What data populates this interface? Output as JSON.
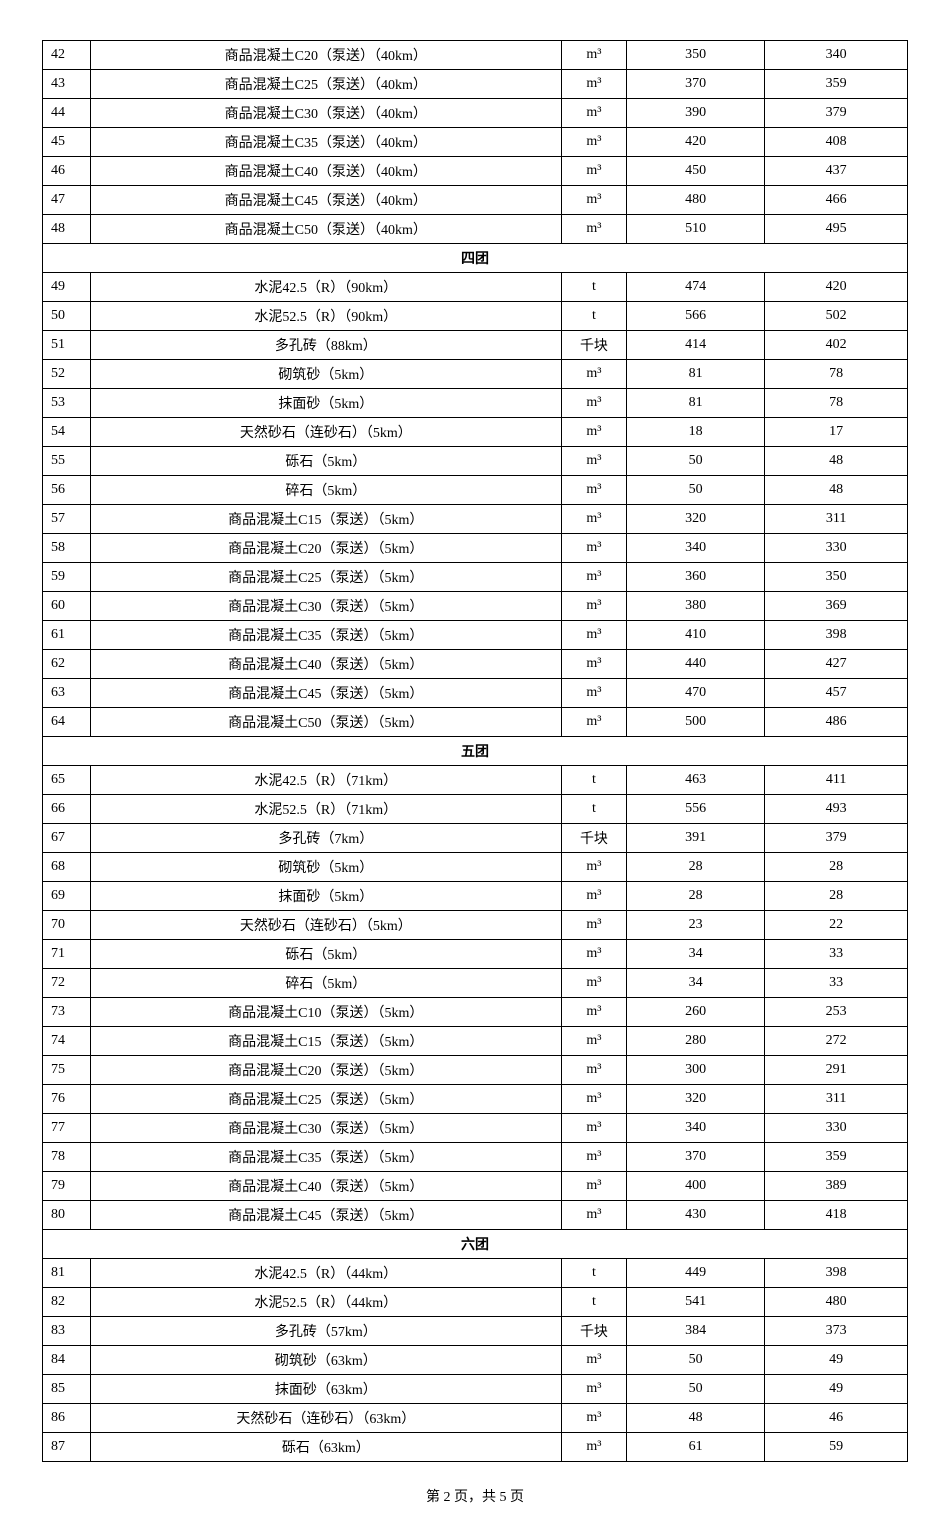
{
  "footer": "第 2 页，共 5 页",
  "sections": [
    {
      "rows": [
        {
          "n": "42",
          "name": "商品混凝土C20（泵送）（40km）",
          "unit": "m³",
          "p1": "350",
          "p2": "340"
        },
        {
          "n": "43",
          "name": "商品混凝土C25（泵送）（40km）",
          "unit": "m³",
          "p1": "370",
          "p2": "359"
        },
        {
          "n": "44",
          "name": "商品混凝土C30（泵送）（40km）",
          "unit": "m³",
          "p1": "390",
          "p2": "379"
        },
        {
          "n": "45",
          "name": "商品混凝土C35（泵送）（40km）",
          "unit": "m³",
          "p1": "420",
          "p2": "408"
        },
        {
          "n": "46",
          "name": "商品混凝土C40（泵送）（40km）",
          "unit": "m³",
          "p1": "450",
          "p2": "437"
        },
        {
          "n": "47",
          "name": "商品混凝土C45（泵送）（40km）",
          "unit": "m³",
          "p1": "480",
          "p2": "466"
        },
        {
          "n": "48",
          "name": "商品混凝土C50（泵送）（40km）",
          "unit": "m³",
          "p1": "510",
          "p2": "495"
        }
      ]
    },
    {
      "title": "四团",
      "rows": [
        {
          "n": "49",
          "name": "水泥42.5（R）（90km）",
          "unit": "t",
          "p1": "474",
          "p2": "420"
        },
        {
          "n": "50",
          "name": "水泥52.5（R）（90km）",
          "unit": "t",
          "p1": "566",
          "p2": "502"
        },
        {
          "n": "51",
          "name": "多孔砖（88km）",
          "unit": "千块",
          "p1": "414",
          "p2": "402"
        },
        {
          "n": "52",
          "name": "砌筑砂（5km）",
          "unit": "m³",
          "p1": "81",
          "p2": "78"
        },
        {
          "n": "53",
          "name": "抹面砂（5km）",
          "unit": "m³",
          "p1": "81",
          "p2": "78"
        },
        {
          "n": "54",
          "name": "天然砂石（连砂石）（5km）",
          "unit": "m³",
          "p1": "18",
          "p2": "17"
        },
        {
          "n": "55",
          "name": "砾石（5km）",
          "unit": "m³",
          "p1": "50",
          "p2": "48"
        },
        {
          "n": "56",
          "name": "碎石（5km）",
          "unit": "m³",
          "p1": "50",
          "p2": "48"
        },
        {
          "n": "57",
          "name": "商品混凝土C15（泵送）（5km）",
          "unit": "m³",
          "p1": "320",
          "p2": "311"
        },
        {
          "n": "58",
          "name": "商品混凝土C20（泵送）（5km）",
          "unit": "m³",
          "p1": "340",
          "p2": "330"
        },
        {
          "n": "59",
          "name": "商品混凝土C25（泵送）（5km）",
          "unit": "m³",
          "p1": "360",
          "p2": "350"
        },
        {
          "n": "60",
          "name": "商品混凝土C30（泵送）（5km）",
          "unit": "m³",
          "p1": "380",
          "p2": "369"
        },
        {
          "n": "61",
          "name": "商品混凝土C35（泵送）（5km）",
          "unit": "m³",
          "p1": "410",
          "p2": "398"
        },
        {
          "n": "62",
          "name": "商品混凝土C40（泵送）（5km）",
          "unit": "m³",
          "p1": "440",
          "p2": "427"
        },
        {
          "n": "63",
          "name": "商品混凝土C45（泵送）（5km）",
          "unit": "m³",
          "p1": "470",
          "p2": "457"
        },
        {
          "n": "64",
          "name": "商品混凝土C50（泵送）（5km）",
          "unit": "m³",
          "p1": "500",
          "p2": "486"
        }
      ]
    },
    {
      "title": "五团",
      "rows": [
        {
          "n": "65",
          "name": "水泥42.5（R）（71km）",
          "unit": "t",
          "p1": "463",
          "p2": "411"
        },
        {
          "n": "66",
          "name": "水泥52.5（R）（71km）",
          "unit": "t",
          "p1": "556",
          "p2": "493"
        },
        {
          "n": "67",
          "name": "多孔砖（7km）",
          "unit": "千块",
          "p1": "391",
          "p2": "379"
        },
        {
          "n": "68",
          "name": "砌筑砂（5km）",
          "unit": "m³",
          "p1": "28",
          "p2": "28"
        },
        {
          "n": "69",
          "name": "抹面砂（5km）",
          "unit": "m³",
          "p1": "28",
          "p2": "28"
        },
        {
          "n": "70",
          "name": "天然砂石（连砂石）（5km）",
          "unit": "m³",
          "p1": "23",
          "p2": "22"
        },
        {
          "n": "71",
          "name": "砾石（5km）",
          "unit": "m³",
          "p1": "34",
          "p2": "33"
        },
        {
          "n": "72",
          "name": "碎石（5km）",
          "unit": "m³",
          "p1": "34",
          "p2": "33"
        },
        {
          "n": "73",
          "name": "商品混凝土C10（泵送）（5km）",
          "unit": "m³",
          "p1": "260",
          "p2": "253"
        },
        {
          "n": "74",
          "name": "商品混凝土C15（泵送）（5km）",
          "unit": "m³",
          "p1": "280",
          "p2": "272"
        },
        {
          "n": "75",
          "name": "商品混凝土C20（泵送）（5km）",
          "unit": "m³",
          "p1": "300",
          "p2": "291"
        },
        {
          "n": "76",
          "name": "商品混凝土C25（泵送）（5km）",
          "unit": "m³",
          "p1": "320",
          "p2": "311"
        },
        {
          "n": "77",
          "name": "商品混凝土C30（泵送）（5km）",
          "unit": "m³",
          "p1": "340",
          "p2": "330"
        },
        {
          "n": "78",
          "name": "商品混凝土C35（泵送）（5km）",
          "unit": "m³",
          "p1": "370",
          "p2": "359"
        },
        {
          "n": "79",
          "name": "商品混凝土C40（泵送）（5km）",
          "unit": "m³",
          "p1": "400",
          "p2": "389"
        },
        {
          "n": "80",
          "name": "商品混凝土C45（泵送）（5km）",
          "unit": "m³",
          "p1": "430",
          "p2": "418"
        }
      ]
    },
    {
      "title": "六团",
      "rows": [
        {
          "n": "81",
          "name": "水泥42.5（R）（44km）",
          "unit": "t",
          "p1": "449",
          "p2": "398"
        },
        {
          "n": "82",
          "name": "水泥52.5（R）（44km）",
          "unit": "t",
          "p1": "541",
          "p2": "480"
        },
        {
          "n": "83",
          "name": "多孔砖（57km）",
          "unit": "千块",
          "p1": "384",
          "p2": "373"
        },
        {
          "n": "84",
          "name": "砌筑砂（63km）",
          "unit": "m³",
          "p1": "50",
          "p2": "49"
        },
        {
          "n": "85",
          "name": "抹面砂（63km）",
          "unit": "m³",
          "p1": "50",
          "p2": "49"
        },
        {
          "n": "86",
          "name": "天然砂石（连砂石）（63km）",
          "unit": "m³",
          "p1": "48",
          "p2": "46"
        },
        {
          "n": "87",
          "name": "砾石（63km）",
          "unit": "m³",
          "p1": "61",
          "p2": "59"
        }
      ]
    }
  ]
}
